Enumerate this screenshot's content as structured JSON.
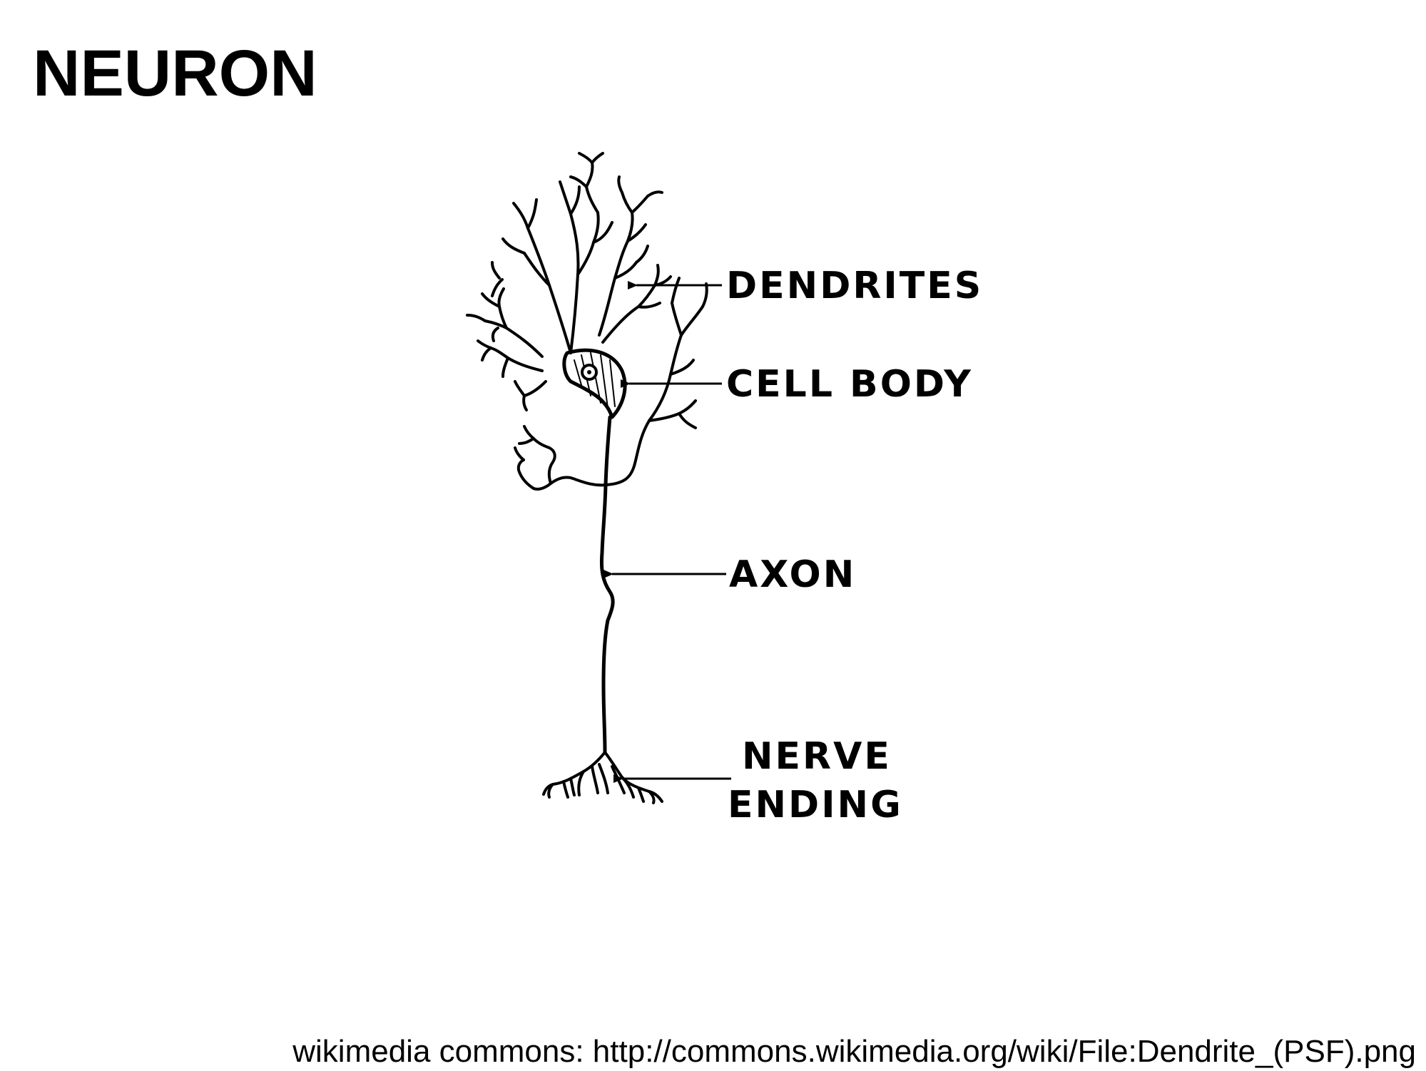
{
  "slide": {
    "title": "NEURON",
    "caption": "wikimedia commons: http://commons.wikimedia.org/wiki/File:Dendrite_(PSF).png"
  },
  "diagram": {
    "labels": {
      "dendrites": "DENDRITES",
      "cell_body": "CELL BODY",
      "axon": "AXON",
      "nerve_ending_line1": "NERVE",
      "nerve_ending_line2": "ENDING"
    },
    "ink_color": "#000000"
  }
}
